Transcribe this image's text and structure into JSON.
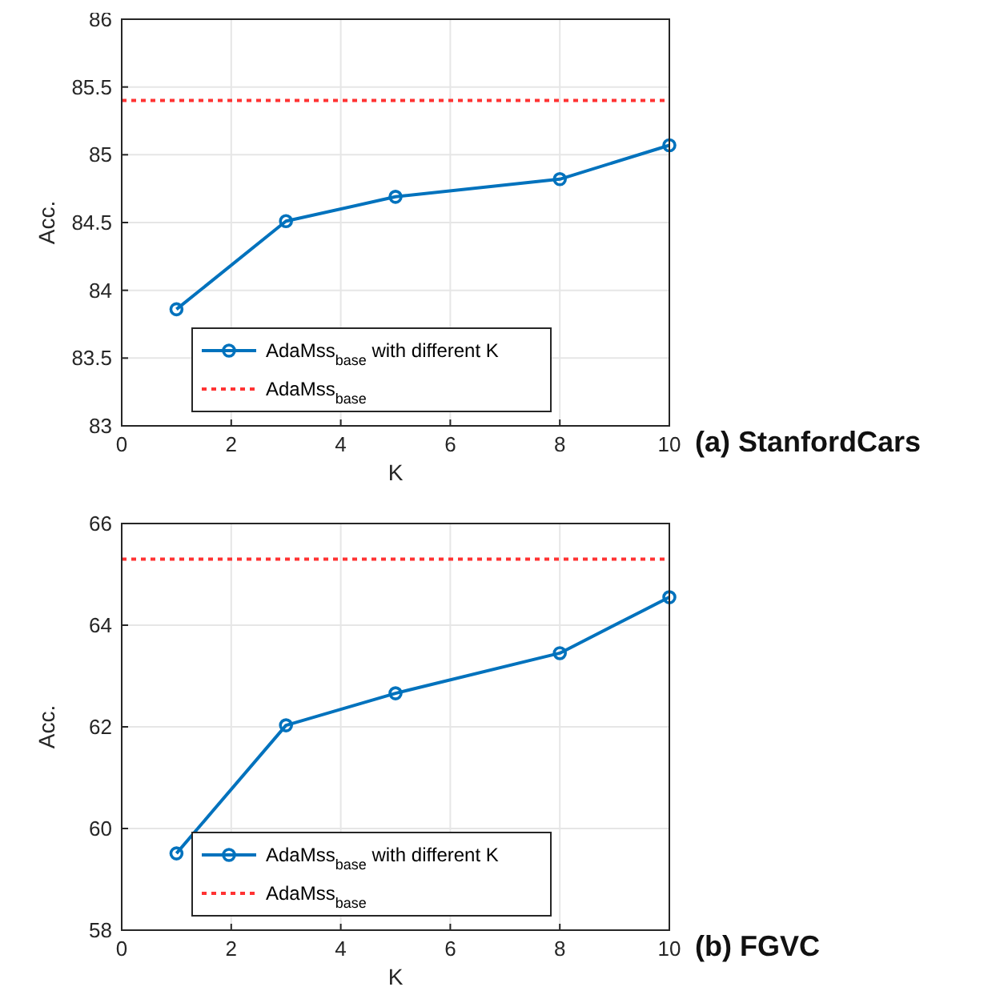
{
  "chart_data": [
    {
      "type": "line",
      "xlabel": "K",
      "ylabel": "Acc.",
      "x": [
        1,
        3,
        5,
        8,
        10
      ],
      "xlim": [
        0,
        10
      ],
      "xticks": [
        0,
        2,
        4,
        6,
        8,
        10
      ],
      "ylim": [
        83,
        86
      ],
      "yticks": [
        83,
        83.5,
        84,
        84.5,
        85,
        85.5,
        86
      ],
      "grid": true,
      "marker": "circle",
      "legend": "bottom",
      "line_style": "solid",
      "series": [
        {
          "name": "AdaMss$_{base}$ with different K",
          "color": "#0072bd",
          "values": [
            83.86,
            84.51,
            84.69,
            84.82,
            85.07
          ]
        }
      ],
      "ref_lines": [
        {
          "axis": "y",
          "value": 85.4,
          "label": "AdaMss$_{base}$",
          "color": "#ff3333",
          "line_style": "dotted"
        }
      ],
      "annotations": [
        "(a) StanfordCars"
      ]
    },
    {
      "type": "line",
      "xlabel": "K",
      "ylabel": "Acc.",
      "x": [
        1,
        3,
        5,
        8,
        10
      ],
      "xlim": [
        0,
        10
      ],
      "xticks": [
        0,
        2,
        4,
        6,
        8,
        10
      ],
      "ylim": [
        58,
        66
      ],
      "yticks": [
        58,
        60,
        62,
        64,
        66
      ],
      "grid": true,
      "marker": "circle",
      "legend": "bottom",
      "line_style": "solid",
      "series": [
        {
          "name": "AdaMss$_{base}$ with different K",
          "color": "#0072bd",
          "values": [
            59.51,
            62.03,
            62.66,
            63.45,
            64.55
          ]
        }
      ],
      "ref_lines": [
        {
          "axis": "y",
          "value": 65.3,
          "label": "AdaMss$_{base}$",
          "color": "#ff3333",
          "line_style": "dotted"
        }
      ],
      "annotations": [
        "(b) FGVC"
      ]
    }
  ]
}
